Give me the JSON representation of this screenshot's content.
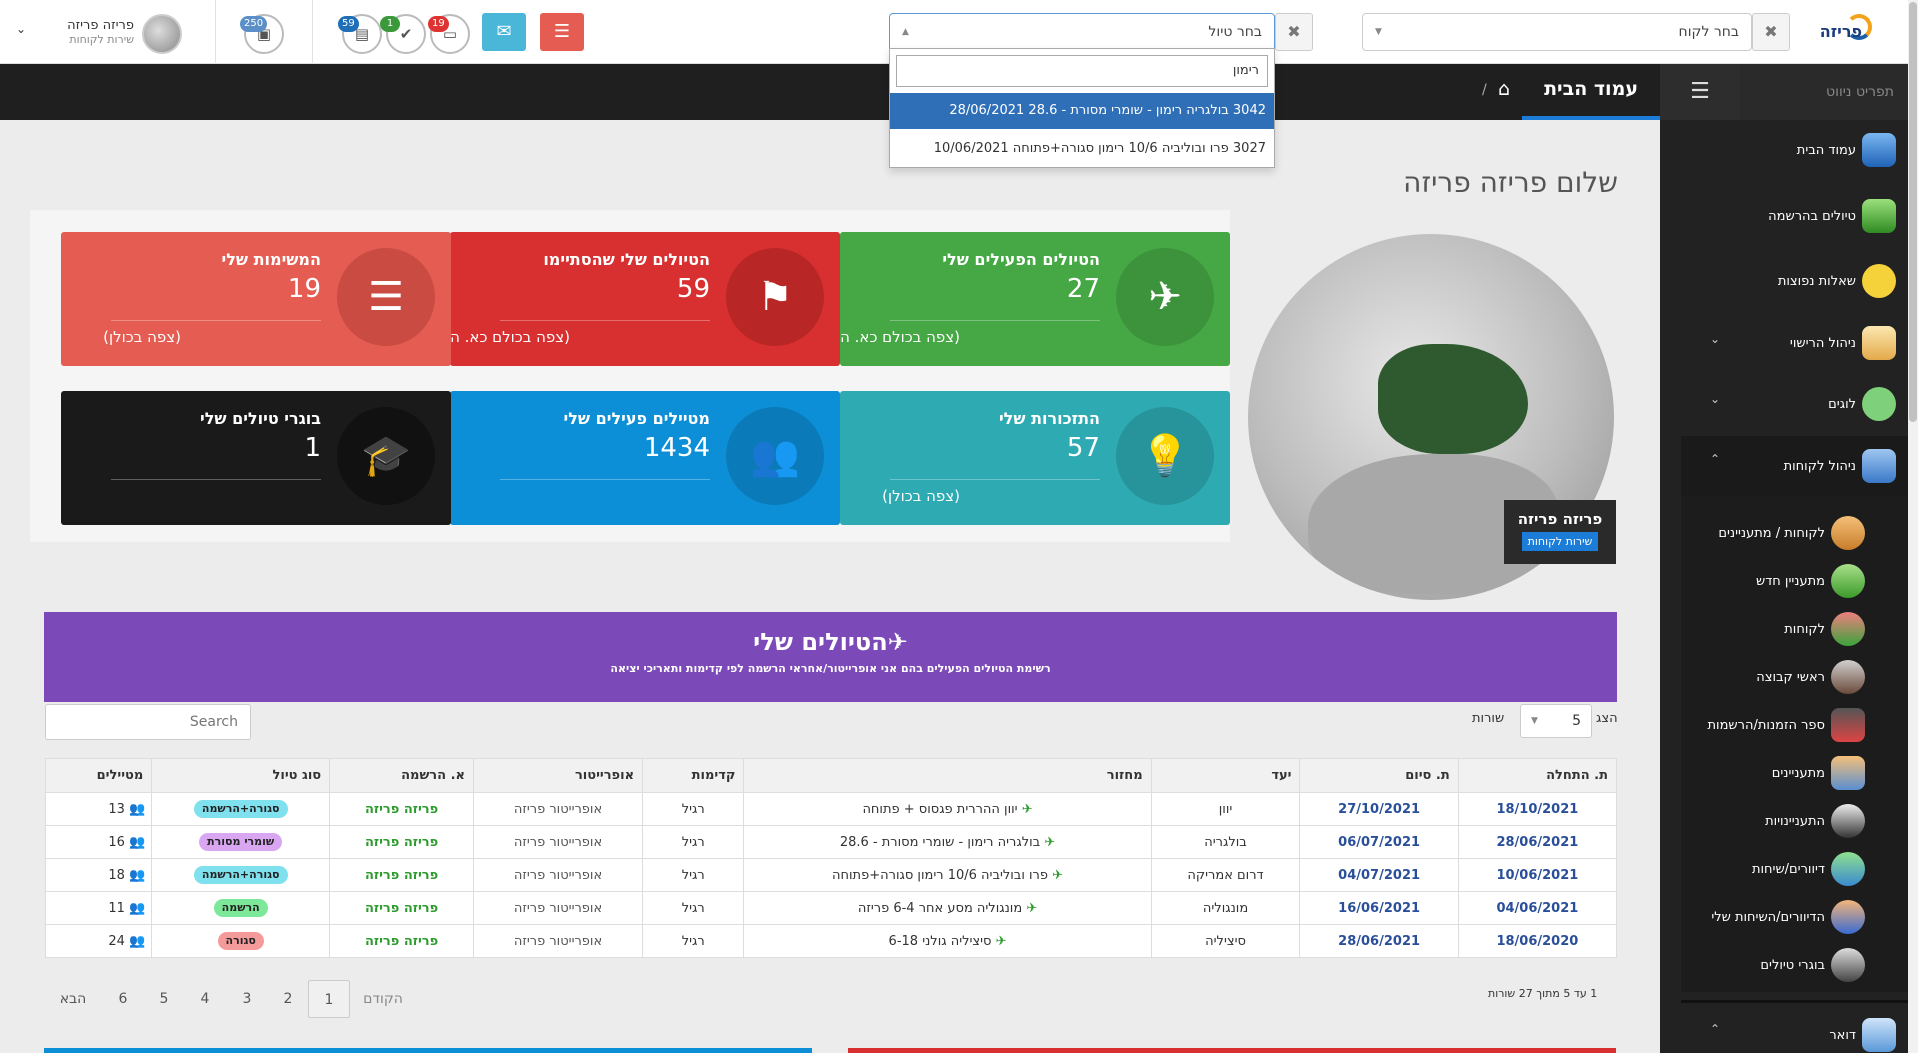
{
  "topbar": {
    "logo": "פריזה",
    "customer_select": "בחר לקוח",
    "trip_select": "בחר טיול",
    "user_name": "פריזה פריזה",
    "user_role": "שירות לקוחות",
    "badge_inbox": "250",
    "badge_tasks": "59",
    "badge_done": "1",
    "badge_msgs": "19"
  },
  "dropdown": {
    "search_value": "רימון",
    "options": [
      "3042 בולגריה רימון - שומרי מסורת - 28.6 28/06/2021",
      "3027 פרו ובוליביה 10/6 רימון סגורה+פתוחה 10/06/2021"
    ]
  },
  "navbar": {
    "title": "עמוד הבית",
    "sep": "/"
  },
  "sidebar": {
    "heading": "תפריט ניווט",
    "items": [
      "עמוד הבית",
      "טיולים בהרשמה",
      "שאלות נפוצות",
      "ניהול הרישוי",
      "לוגים",
      "ניהול לקוחות",
      "לקוחות / מתעניינים",
      "מתעניין חדש",
      "לקוחות",
      "ראשי קבוצה",
      "ספר הזמנות/הרשמות",
      "מתעניינים",
      "התעניינויות",
      "דיוורים/שיחות",
      "הדיוורים/השיחות שלי",
      "בוגרי טיולים",
      "דואר"
    ]
  },
  "greeting": "שלום פריזה פריזה",
  "globe_label": {
    "name": "פריזה פריזה",
    "role": "שירות לקוחות"
  },
  "cards": [
    {
      "title": "הטיולים הפעילים שלי",
      "value": "27",
      "link": "(צפה בכולם כא. הרשמה)",
      "color": "#45a844",
      "dark": "#3c933b",
      "icon": "✈"
    },
    {
      "title": "הטיולים שלי שהסתיימו",
      "value": "59",
      "link": "(צפה בכולם כא. הרשמה)",
      "color": "#d83030",
      "dark": "#b92626",
      "icon": "⚑"
    },
    {
      "title": "המשימות שלי",
      "value": "19",
      "link": "(צפה בכולן)",
      "color": "#e55d52",
      "dark": "#c94b42",
      "icon": "☰"
    },
    {
      "title": "התזכורות שלי",
      "value": "57",
      "link": "(צפה בכולן)",
      "color": "#2eaab2",
      "dark": "#27939a",
      "icon": "💡"
    },
    {
      "title": "מטיילים פעילים שלי",
      "value": "1434",
      "link": "",
      "color": "#0c8fd6",
      "dark": "#0a7ab8",
      "icon": "👥"
    },
    {
      "title": "בוגרי טיולים שלי",
      "value": "1",
      "link": "",
      "color": "#1a1a1a",
      "dark": "#111111",
      "icon": "🎓"
    }
  ],
  "trips_panel": {
    "title": "הטיולים שלי",
    "subtitle": "רשימת הטיולים הפעילים בהם אני אופרייטור/אחראי הרשמה לפי קדימות ותאריכי יציאה",
    "show_label": "הצג",
    "rows_label": "שורות",
    "rows_value": "5",
    "search_placeholder": "Search"
  },
  "table": {
    "headers": [
      "ת. התחלה",
      "ת. סיום",
      "יעד",
      "מחזור",
      "קדימות",
      "אופרייטור",
      "א. הרשמה",
      "סוג טיול",
      "מטיילים"
    ],
    "rows": [
      {
        "start": "18/10/2021",
        "end": "27/10/2021",
        "dest": "יוון",
        "cycle": "יוון ההררית פגסוס + פתוחה",
        "priority": "רגיל",
        "operator": "אופרייטור פריזה",
        "reg": "פריזה פריזה",
        "type": "סגורה+הרשמה",
        "type_color": "#7fe0ee",
        "travelers": "13"
      },
      {
        "start": "28/06/2021",
        "end": "06/07/2021",
        "dest": "בולגריה",
        "cycle": "בולגריה רימון - שומרי מסורת - 28.6",
        "priority": "רגיל",
        "operator": "אופרייטור פריזה",
        "reg": "פריזה פריזה",
        "type": "שומרי מסורת",
        "type_color": "#d9a6f2",
        "travelers": "16"
      },
      {
        "start": "10/06/2021",
        "end": "04/07/2021",
        "dest": "דרום אמריקה",
        "cycle": "פרו ובוליביה 10/6 רימון סגורה+פתוחה",
        "priority": "רגיל",
        "operator": "אופרייטור פריזה",
        "reg": "פריזה פריזה",
        "type": "סגורה+הרשמה",
        "type_color": "#7fe0ee",
        "travelers": "18"
      },
      {
        "start": "04/06/2021",
        "end": "16/06/2021",
        "dest": "מונגוליה",
        "cycle": "מונגוליה מסע אחר 6-4 פריזה",
        "priority": "רגיל",
        "operator": "אופרייטור פריזה",
        "reg": "פריזה פריזה",
        "type": "הרשמה",
        "type_color": "#7de89a",
        "travelers": "11"
      },
      {
        "start": "18/06/2020",
        "end": "28/06/2021",
        "dest": "סיציליה",
        "cycle": "סיציליה גולני 6-18",
        "priority": "רגיל",
        "operator": "אופרייטור פריזה",
        "reg": "פריזה פריזה",
        "type": "סגורה",
        "type_color": "#f49a9a",
        "travelers": "24"
      }
    ]
  },
  "pagination": {
    "info": "1 עד 5 מתוך 27 שורות",
    "prev": "הקודם",
    "next": "הבא",
    "pages": [
      "1",
      "2",
      "3",
      "4",
      "5",
      "6"
    ]
  }
}
